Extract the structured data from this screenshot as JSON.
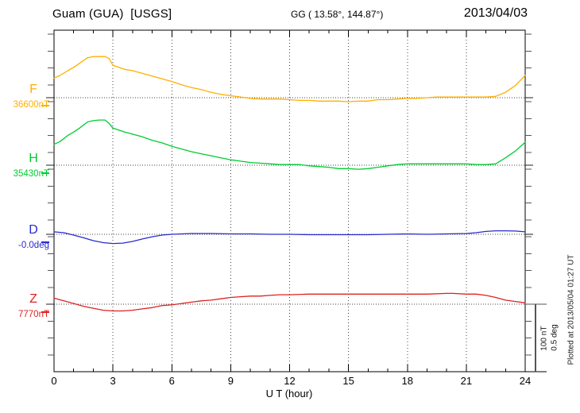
{
  "header": {
    "station_title": "Guam (GUA)  [USGS]",
    "coords": "GG ( 13.58°, 144.87°)",
    "date": "2013/04/03"
  },
  "labels": {
    "F": {
      "letter": "F",
      "value": "36600nT"
    },
    "H": {
      "letter": "H",
      "value": "35430nT"
    },
    "D": {
      "letter": "D",
      "value": "-0.0deg"
    },
    "Z": {
      "letter": "Z",
      "value": "7770nT"
    }
  },
  "axis": {
    "tick_labels": [
      "0",
      "3",
      "6",
      "9",
      "12",
      "15",
      "18",
      "21",
      "24"
    ],
    "xlabel": "U T (hour)"
  },
  "scalebar": {
    "line1": "100 nT",
    "line2": "0.5 deg"
  },
  "footer_note": "Plotted at 2013/05/04 01:27 UT",
  "colors": {
    "F": "#FFAF00",
    "H": "#00CC33",
    "D": "#2A2AD0",
    "Z": "#DD2222",
    "frame": "#000000",
    "grid": "#444444",
    "scalebar": "#555555"
  },
  "chart_data": {
    "type": "line",
    "title": "Guam (GUA) [USGS] magnetogram 2013/04/03",
    "xlabel": "U T (hour)",
    "x_range": [
      0,
      24
    ],
    "x_ticks": [
      0,
      3,
      6,
      9,
      12,
      15,
      18,
      21,
      24
    ],
    "grid": "dotted vertical at 3h intervals, dotted baseline per component",
    "scale": {
      "nT_per_div": 100,
      "deg_per_div": 0.5
    },
    "series": [
      {
        "name": "F",
        "unit": "nT",
        "baseline": 36600,
        "color": "#FFAF00",
        "points": [
          [
            0,
            36629
          ],
          [
            0.3,
            36633
          ],
          [
            0.7,
            36640
          ],
          [
            1,
            36645
          ],
          [
            1.3,
            36651
          ],
          [
            1.7,
            36659
          ],
          [
            2,
            36661
          ],
          [
            2.3,
            36661
          ],
          [
            2.6,
            36661
          ],
          [
            2.8,
            36658
          ],
          [
            3,
            36648
          ],
          [
            3.3,
            36645
          ],
          [
            3.6,
            36642
          ],
          [
            4,
            36640
          ],
          [
            4.5,
            36636
          ],
          [
            5,
            36632
          ],
          [
            5.5,
            36628
          ],
          [
            6,
            36624
          ],
          [
            6.5,
            36619
          ],
          [
            7,
            36615
          ],
          [
            7.5,
            36612
          ],
          [
            8,
            36608
          ],
          [
            8.5,
            36605
          ],
          [
            9,
            36603
          ],
          [
            9.5,
            36601
          ],
          [
            10,
            36599
          ],
          [
            10.5,
            36598
          ],
          [
            11,
            36598
          ],
          [
            11.5,
            36598
          ],
          [
            12,
            36597
          ],
          [
            12.5,
            36596
          ],
          [
            13,
            36596
          ],
          [
            13.5,
            36595
          ],
          [
            14,
            36595
          ],
          [
            14.5,
            36595
          ],
          [
            15,
            36594
          ],
          [
            15.5,
            36595
          ],
          [
            16,
            36595
          ],
          [
            16.5,
            36597
          ],
          [
            17,
            36597
          ],
          [
            17.5,
            36598
          ],
          [
            18,
            36599
          ],
          [
            18.5,
            36599
          ],
          [
            19,
            36600
          ],
          [
            19.5,
            36601
          ],
          [
            20,
            36601
          ],
          [
            20.5,
            36601
          ],
          [
            21,
            36601
          ],
          [
            21.5,
            36601
          ],
          [
            22,
            36601
          ],
          [
            22.5,
            36602
          ],
          [
            23,
            36608
          ],
          [
            23.5,
            36618
          ],
          [
            24,
            36633
          ]
        ]
      },
      {
        "name": "H",
        "unit": "nT",
        "baseline": 35430,
        "color": "#00CC33",
        "points": [
          [
            0,
            35461
          ],
          [
            0.3,
            35465
          ],
          [
            0.7,
            35474
          ],
          [
            1,
            35479
          ],
          [
            1.3,
            35485
          ],
          [
            1.7,
            35494
          ],
          [
            2,
            35496
          ],
          [
            2.3,
            35497
          ],
          [
            2.6,
            35497
          ],
          [
            2.8,
            35492
          ],
          [
            3,
            35485
          ],
          [
            3.3,
            35482
          ],
          [
            3.6,
            35479
          ],
          [
            4,
            35476
          ],
          [
            4.5,
            35472
          ],
          [
            5,
            35467
          ],
          [
            5.5,
            35463
          ],
          [
            6,
            35458
          ],
          [
            6.5,
            35454
          ],
          [
            7,
            35450
          ],
          [
            7.5,
            35447
          ],
          [
            8,
            35444
          ],
          [
            8.5,
            35441
          ],
          [
            9,
            35438
          ],
          [
            9.5,
            35436
          ],
          [
            10,
            35434
          ],
          [
            10.5,
            35433
          ],
          [
            11,
            35432
          ],
          [
            11.5,
            35431
          ],
          [
            12,
            35431
          ],
          [
            12.5,
            35431
          ],
          [
            13,
            35429
          ],
          [
            13.5,
            35428
          ],
          [
            14,
            35427
          ],
          [
            14.5,
            35425
          ],
          [
            15,
            35425
          ],
          [
            15.5,
            35424
          ],
          [
            16,
            35425
          ],
          [
            16.5,
            35427
          ],
          [
            17,
            35429
          ],
          [
            17.5,
            35431
          ],
          [
            18,
            35432
          ],
          [
            19,
            35432
          ],
          [
            19.5,
            35432
          ],
          [
            20,
            35432
          ],
          [
            21,
            35432
          ],
          [
            21.5,
            35431
          ],
          [
            22,
            35431
          ],
          [
            22.5,
            35432
          ],
          [
            23,
            35441
          ],
          [
            23.5,
            35451
          ],
          [
            24,
            35464
          ]
        ]
      },
      {
        "name": "D",
        "unit": "deg",
        "baseline": 0.0,
        "color": "#2A2AD0",
        "points": [
          [
            0,
            0.018
          ],
          [
            0.5,
            0.012
          ],
          [
            1,
            -0.006
          ],
          [
            1.5,
            -0.026
          ],
          [
            2,
            -0.047
          ],
          [
            2.5,
            -0.062
          ],
          [
            3,
            -0.068
          ],
          [
            3.5,
            -0.065
          ],
          [
            4,
            -0.053
          ],
          [
            4.5,
            -0.035
          ],
          [
            5,
            -0.018
          ],
          [
            5.5,
            -0.006
          ],
          [
            6,
            0
          ],
          [
            6.5,
            0.003
          ],
          [
            7,
            0.006
          ],
          [
            8,
            0.006
          ],
          [
            9,
            0.003
          ],
          [
            10,
            0.003
          ],
          [
            11,
            0
          ],
          [
            12,
            0
          ],
          [
            13,
            -0.003
          ],
          [
            14,
            -0.003
          ],
          [
            15,
            -0.003
          ],
          [
            16,
            -0.003
          ],
          [
            17,
            0
          ],
          [
            18,
            0.003
          ],
          [
            19,
            0
          ],
          [
            20,
            0.003
          ],
          [
            21,
            0.006
          ],
          [
            21.5,
            0.012
          ],
          [
            22,
            0.021
          ],
          [
            22.5,
            0.026
          ],
          [
            23,
            0.026
          ],
          [
            23.5,
            0.024
          ],
          [
            24,
            0.018
          ]
        ]
      },
      {
        "name": "Z",
        "unit": "nT",
        "baseline": 7770,
        "color": "#DD2222",
        "points": [
          [
            0,
            7779
          ],
          [
            0.5,
            7775
          ],
          [
            1,
            7771
          ],
          [
            1.5,
            7767
          ],
          [
            2,
            7764
          ],
          [
            2.5,
            7761
          ],
          [
            3,
            7760
          ],
          [
            3.5,
            7760
          ],
          [
            4,
            7761
          ],
          [
            4.5,
            7763
          ],
          [
            5,
            7765
          ],
          [
            5.5,
            7768
          ],
          [
            6,
            7769
          ],
          [
            6.5,
            7771
          ],
          [
            7,
            7773
          ],
          [
            7.5,
            7775
          ],
          [
            8,
            7776
          ],
          [
            8.5,
            7778
          ],
          [
            9,
            7780
          ],
          [
            9.5,
            7781
          ],
          [
            10,
            7782
          ],
          [
            10.5,
            7782
          ],
          [
            11,
            7783
          ],
          [
            11.5,
            7784
          ],
          [
            12,
            7784
          ],
          [
            13,
            7785
          ],
          [
            14,
            7785
          ],
          [
            15,
            7785
          ],
          [
            16,
            7785
          ],
          [
            17,
            7785
          ],
          [
            18,
            7785
          ],
          [
            19,
            7785
          ],
          [
            20,
            7786
          ],
          [
            20.3,
            7786
          ],
          [
            21,
            7785
          ],
          [
            21.5,
            7785
          ],
          [
            22,
            7783
          ],
          [
            22.5,
            7780
          ],
          [
            23,
            7776
          ],
          [
            23.5,
            7774
          ],
          [
            24,
            7772
          ]
        ]
      }
    ]
  }
}
